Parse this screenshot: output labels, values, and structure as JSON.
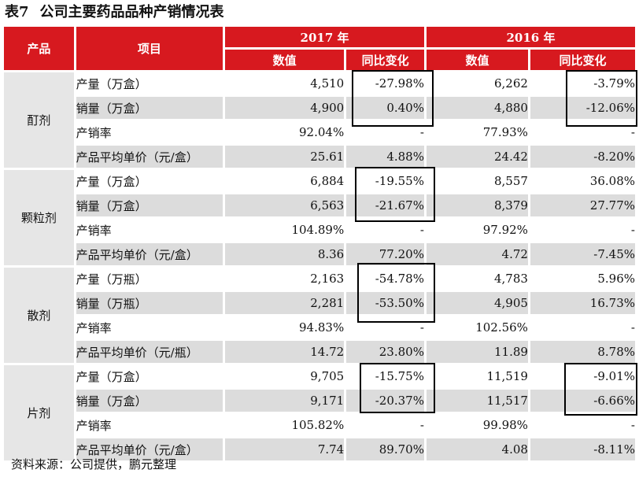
{
  "title": {
    "number": "表7",
    "text": "公司主要药品品种产销情况表"
  },
  "header": {
    "product": "产品",
    "item": "项目",
    "year_a": "2017 年",
    "year_b": "2016 年",
    "value": "数值",
    "yoy": "同比变化"
  },
  "groups": [
    {
      "name": "酊剂",
      "rows": [
        {
          "item": "产量（万盒）",
          "v17": "4,510",
          "y17": "-27.98%",
          "v16": "6,262",
          "y16": "-3.79%"
        },
        {
          "item": "销量（万盒）",
          "v17": "4,900",
          "y17": "0.40%",
          "v16": "4,880",
          "y16": "-12.06%"
        },
        {
          "item": "产销率",
          "v17": "92.04%",
          "y17": "-",
          "v16": "77.93%",
          "y16": "-"
        },
        {
          "item": "产品平均单价（元/盒）",
          "v17": "25.61",
          "y17": "4.88%",
          "v16": "24.42",
          "y16": "-8.20%"
        }
      ]
    },
    {
      "name": "颗粒剂",
      "rows": [
        {
          "item": "产量（万盒）",
          "v17": "6,884",
          "y17": "-19.55%",
          "v16": "8,557",
          "y16": "36.08%"
        },
        {
          "item": "销量（万盒）",
          "v17": "6,563",
          "y17": "-21.67%",
          "v16": "8,379",
          "y16": "27.77%"
        },
        {
          "item": "产销率",
          "v17": "104.89%",
          "y17": "-",
          "v16": "97.92%",
          "y16": "-"
        },
        {
          "item": "产品平均单价（元/盒）",
          "v17": "8.36",
          "y17": "77.20%",
          "v16": "4.72",
          "y16": "-7.45%"
        }
      ]
    },
    {
      "name": "散剂",
      "rows": [
        {
          "item": "产量（万瓶）",
          "v17": "2,163",
          "y17": "-54.78%",
          "v16": "4,783",
          "y16": "5.96%"
        },
        {
          "item": "销量（万瓶）",
          "v17": "2,281",
          "y17": "-53.50%",
          "v16": "4,905",
          "y16": "16.73%"
        },
        {
          "item": "产销率",
          "v17": "94.83%",
          "y17": "-",
          "v16": "102.56%",
          "y16": "-"
        },
        {
          "item": "产品平均单价（元/瓶）",
          "v17": "14.72",
          "y17": "23.80%",
          "v16": "11.89",
          "y16": "8.78%"
        }
      ]
    },
    {
      "name": "片剂",
      "rows": [
        {
          "item": "产量（万盒）",
          "v17": "9,705",
          "y17": "-15.75%",
          "v16": "11,519",
          "y16": "-9.01%"
        },
        {
          "item": "销量（万盒）",
          "v17": "9,171",
          "y17": "-20.37%",
          "v16": "11,517",
          "y16": "-6.66%"
        },
        {
          "item": "产销率",
          "v17": "105.82%",
          "y17": "-",
          "v16": "99.98%",
          "y16": "-"
        },
        {
          "item": "产品平均单价（元/盒）",
          "v17": "7.74",
          "y17": "89.70%",
          "v16": "4.08",
          "y16": "-8.11%"
        }
      ]
    }
  ],
  "source": "资料来源：公司提供，鹏元整理"
}
